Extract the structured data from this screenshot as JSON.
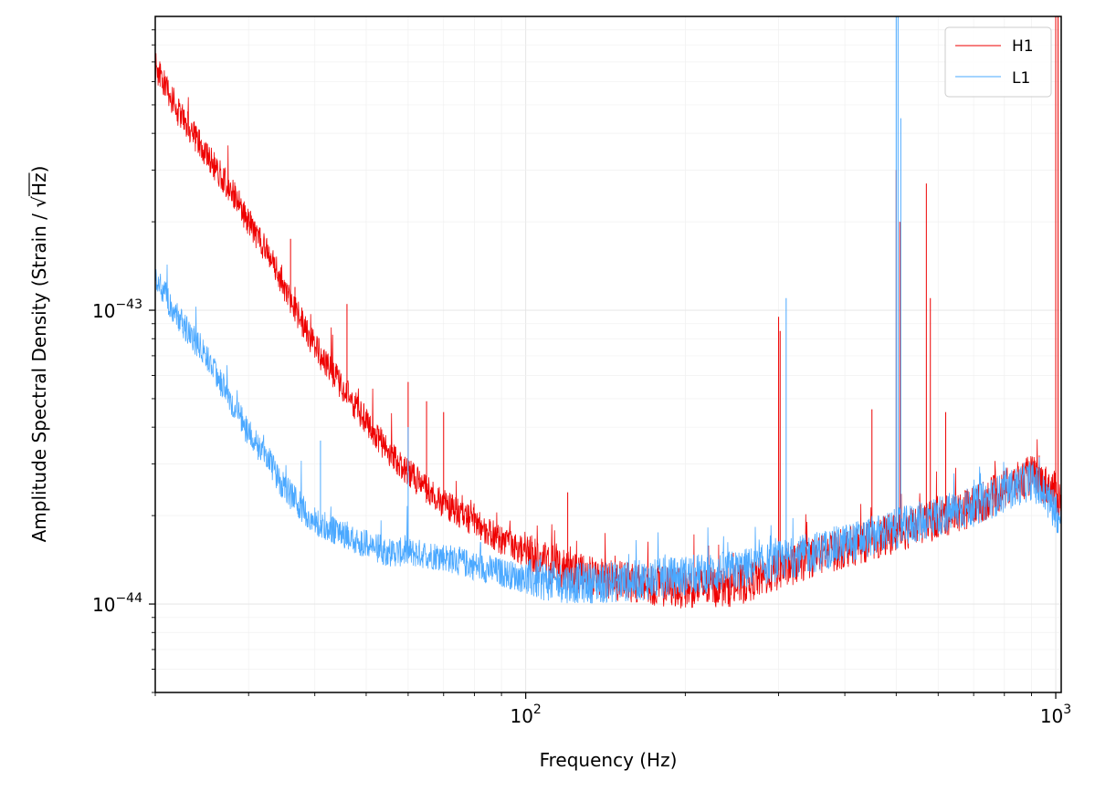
{
  "chart_data": {
    "type": "line",
    "xlabel": "Frequency (Hz)",
    "ylabel_text": "Amplitude Spectral Density (Strain / ",
    "ylabel_radical": "√",
    "ylabel_unit": "Hz",
    "ylabel_close": ")",
    "x_scale": "log",
    "y_scale": "log",
    "xlim": [
      20,
      1024
    ],
    "ylim": [
      5e-45,
      1e-42
    ],
    "grid": true,
    "legend_placement": "top-right",
    "x_ticks": [
      {
        "value": 100,
        "base": "10",
        "exp": "2"
      },
      {
        "value": 1000,
        "base": "10",
        "exp": "3"
      }
    ],
    "y_ticks": [
      {
        "value": 1e-44,
        "base": "10",
        "exp": "−44"
      },
      {
        "value": 1e-43,
        "base": "10",
        "exp": "−43"
      }
    ],
    "series": [
      {
        "name": "H1",
        "color": "#ee0000",
        "x": [
          20,
          22,
          25,
          28,
          30,
          33,
          35,
          38,
          40,
          45,
          50,
          55,
          60,
          70,
          80,
          90,
          100,
          110,
          120,
          140,
          160,
          180,
          200,
          250,
          300,
          350,
          400,
          450,
          500,
          550,
          600,
          700,
          800,
          900,
          1000,
          1024
        ],
        "y": [
          6.8e-43,
          4.8e-43,
          3.4e-43,
          2.5e-43,
          2e-43,
          1.5e-43,
          1.2e-43,
          9e-44,
          7.5e-44,
          5.5e-44,
          4.2e-44,
          3.3e-44,
          2.8e-44,
          2.2e-44,
          1.9e-44,
          1.65e-44,
          1.5e-44,
          1.38e-44,
          1.3e-44,
          1.22e-44,
          1.18e-44,
          1.15e-44,
          1.13e-44,
          1.15e-44,
          1.3e-44,
          1.45e-44,
          1.55e-44,
          1.65e-44,
          1.75e-44,
          1.85e-44,
          1.95e-44,
          2.15e-44,
          2.45e-44,
          2.75e-44,
          2.4e-44,
          2.2e-44
        ],
        "peaks": [
          {
            "x": 36,
            "y": 1.75e-43
          },
          {
            "x": 36.7,
            "y": 1.2e-43
          },
          {
            "x": 46,
            "y": 1.05e-43
          },
          {
            "x": 60,
            "y": 5.7e-44
          },
          {
            "x": 65,
            "y": 4.9e-44
          },
          {
            "x": 70,
            "y": 4.5e-44
          },
          {
            "x": 120,
            "y": 2.4e-44
          },
          {
            "x": 300,
            "y": 9.5e-44
          },
          {
            "x": 302,
            "y": 8.5e-44
          },
          {
            "x": 450,
            "y": 4.6e-44
          },
          {
            "x": 500,
            "y": 3e-43
          },
          {
            "x": 508,
            "y": 2e-43
          },
          {
            "x": 570,
            "y": 2.7e-43
          },
          {
            "x": 580,
            "y": 1.1e-43
          },
          {
            "x": 620,
            "y": 4.5e-44
          },
          {
            "x": 1000,
            "y": 1e-42
          },
          {
            "x": 1010,
            "y": 1e-42
          }
        ]
      },
      {
        "name": "L1",
        "color": "#4aa8ff",
        "x": [
          20,
          22,
          25,
          28,
          30,
          33,
          35,
          38,
          40,
          45,
          50,
          55,
          60,
          70,
          80,
          90,
          100,
          120,
          140,
          160,
          180,
          200,
          250,
          300,
          350,
          400,
          450,
          500,
          550,
          600,
          700,
          800,
          900,
          1000,
          1024
        ],
        "y": [
          1.3e-43,
          9.5e-44,
          7e-44,
          4.8e-44,
          3.8e-44,
          3e-44,
          2.5e-44,
          2.1e-44,
          1.9e-44,
          1.75e-44,
          1.6e-44,
          1.5e-44,
          1.5e-44,
          1.45e-44,
          1.35e-44,
          1.28e-44,
          1.22e-44,
          1.18e-44,
          1.18e-44,
          1.2e-44,
          1.22e-44,
          1.25e-44,
          1.3e-44,
          1.4e-44,
          1.5e-44,
          1.6e-44,
          1.7e-44,
          1.8e-44,
          1.9e-44,
          2e-44,
          2.15e-44,
          2.4e-44,
          2.65e-44,
          2.1e-44,
          1.85e-44
        ],
        "peaks": [
          {
            "x": 41,
            "y": 3.6e-44
          },
          {
            "x": 60,
            "y": 4e-44
          },
          {
            "x": 310,
            "y": 1.1e-43
          },
          {
            "x": 500,
            "y": 1e-42
          },
          {
            "x": 504,
            "y": 1e-42
          },
          {
            "x": 510,
            "y": 4.5e-43
          },
          {
            "x": 1024,
            "y": 8.5e-44
          }
        ]
      }
    ]
  }
}
